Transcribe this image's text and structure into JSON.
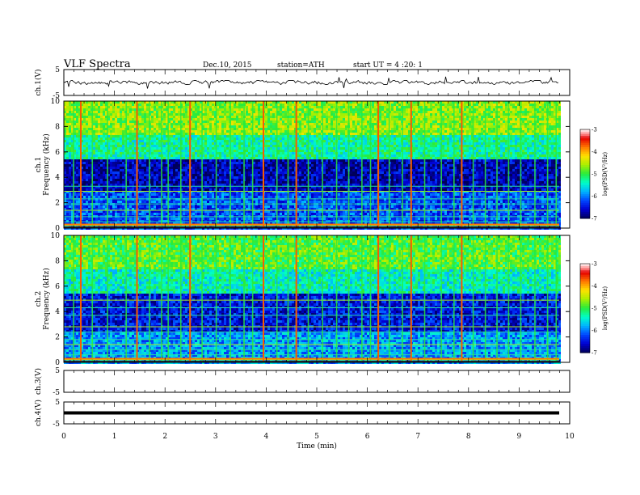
{
  "header": {
    "title": "VLF Spectra",
    "date": "Dec.10, 2015",
    "station": "station=ATH",
    "start": "start UT = 4 :20: 1"
  },
  "colors": {
    "scale": [
      "#000066",
      "#0000cc",
      "#0055ff",
      "#00bbff",
      "#00ffcc",
      "#00ee44",
      "#aaee00",
      "#ffdd00",
      "#ff7700",
      "#ee0000",
      "#ff9999",
      "#ffffff"
    ]
  },
  "chart_data": [
    {
      "type": "line",
      "name": "ch1-waveform",
      "ylabel": "ch.1(V)",
      "ylim": [
        -5,
        5
      ],
      "yticks": [
        5,
        -5
      ],
      "xlim": [
        0,
        10
      ],
      "baseline": 0,
      "typical_range": [
        -0.8,
        0.8
      ],
      "spike_range": [
        -2.5,
        2.5
      ]
    },
    {
      "type": "heatmap",
      "name": "ch1-spectrogram",
      "ylabel": "ch.1",
      "ylabel2": "Frequency (kHz)",
      "ylim": [
        0,
        10
      ],
      "yticks": [
        0,
        2,
        4,
        6,
        8,
        10
      ],
      "xlim": [
        0,
        9.8
      ],
      "colorbar": {
        "label": "log(PSD(V²/Hz)",
        "range": [
          -7,
          -3
        ],
        "ticks": [
          -3,
          -4,
          -5,
          -6,
          -7
        ]
      },
      "bands": [
        {
          "from": 0,
          "to": 3,
          "logpsd": -6.2
        },
        {
          "from": 3,
          "to": 5.5,
          "logpsd": -6.7
        },
        {
          "from": 5.5,
          "to": 7.5,
          "logpsd": -5.3
        },
        {
          "from": 7.5,
          "to": 10,
          "logpsd": -4.7
        }
      ],
      "lines_khz": [
        0.2,
        0.5,
        0.9,
        1.4,
        1.9,
        2.3,
        2.9,
        3.3
      ]
    },
    {
      "type": "heatmap",
      "name": "ch2-spectrogram",
      "ylabel": "ch.2",
      "ylabel2": "Frequency (kHz)",
      "ylim": [
        0,
        10
      ],
      "yticks": [
        0,
        2,
        4,
        6,
        8,
        10
      ],
      "xlim": [
        0,
        9.8
      ],
      "colorbar": {
        "label": "log(PSD(V²/Hz)",
        "range": [
          -7,
          -3
        ],
        "ticks": [
          -3,
          -4,
          -5,
          -6,
          -7
        ]
      },
      "bands": [
        {
          "from": 0,
          "to": 2.5,
          "logpsd": -5.9
        },
        {
          "from": 2.5,
          "to": 5.5,
          "logpsd": -6.5
        },
        {
          "from": 5.5,
          "to": 7.5,
          "logpsd": -5.4
        },
        {
          "from": 7.5,
          "to": 10,
          "logpsd": -4.9
        }
      ],
      "lines_khz": [
        0.2,
        0.6,
        1.0,
        1.4,
        1.8,
        2.4,
        2.8,
        3.7,
        4.3,
        4.9
      ]
    },
    {
      "type": "line",
      "name": "ch3-waveform",
      "ylabel": "ch.3(V)",
      "ylim": [
        -5,
        5
      ],
      "yticks": [
        5,
        -5
      ],
      "values": []
    },
    {
      "type": "line",
      "name": "ch4-waveform",
      "ylabel": "ch.4(V)",
      "ylim": [
        -5,
        5
      ],
      "yticks": [
        5,
        -5
      ],
      "xlim": [
        0,
        9.8
      ],
      "baseline": 0
    }
  ],
  "x_axis": {
    "label": "Time (min)",
    "ticks": [
      0,
      1,
      2,
      3,
      4,
      5,
      6,
      7,
      8,
      9,
      10
    ],
    "range": [
      0,
      10
    ]
  },
  "events_min": [
    0.18,
    0.32,
    0.55,
    0.85,
    1.22,
    1.43,
    1.68,
    1.92,
    2.05,
    2.3,
    2.48,
    2.72,
    3.0,
    3.28,
    3.55,
    3.72,
    3.93,
    4.2,
    4.42,
    4.58,
    4.82,
    5.1,
    5.38,
    5.62,
    5.88,
    6.05,
    6.2,
    6.42,
    6.68,
    6.85,
    7.12,
    7.45,
    7.7,
    7.85,
    8.08,
    8.32,
    8.55,
    8.78,
    9.02,
    9.3,
    9.55,
    9.72
  ],
  "strong_events_min": [
    0.32,
    1.43,
    2.48,
    3.93,
    4.58,
    6.2,
    6.85,
    7.85
  ]
}
